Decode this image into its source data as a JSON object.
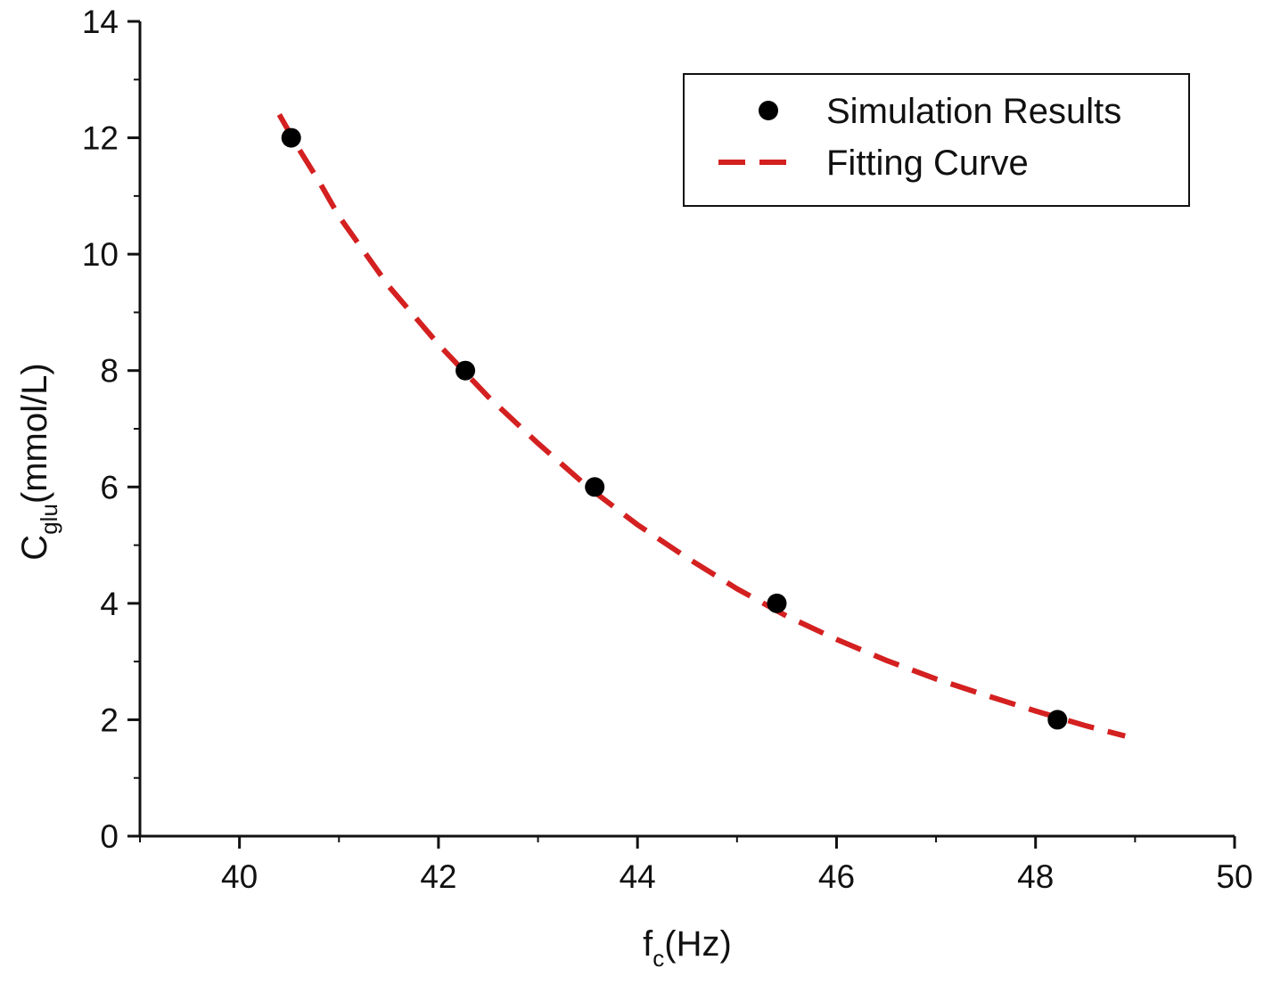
{
  "chart_data": {
    "type": "scatter",
    "xlabel_main": "f",
    "xlabel_sub": "c",
    "xlabel_rest": "(Hz)",
    "ylabel_main": "C",
    "ylabel_sub": "glu",
    "ylabel_rest": "(mmol/L)",
    "xlim": [
      39,
      50
    ],
    "ylim": [
      0,
      14
    ],
    "x_ticks": [
      40,
      42,
      44,
      46,
      48,
      50
    ],
    "y_ticks": [
      0,
      2,
      4,
      6,
      8,
      10,
      12,
      14
    ],
    "x_minor_step": 1,
    "y_minor_step": 1,
    "grid": false,
    "legend_position": "top-right",
    "series": [
      {
        "name": "Simulation Results",
        "kind": "scatter",
        "color": "#000000",
        "x": [
          40.52,
          42.27,
          43.57,
          45.4,
          48.22
        ],
        "y": [
          12.0,
          8.0,
          6.0,
          4.0,
          2.0
        ]
      },
      {
        "name": "Fitting Curve",
        "kind": "line",
        "style": "dashed",
        "color": "#d42020",
        "x": [
          40.4,
          40.6,
          40.8,
          41.0,
          41.5,
          42.0,
          42.5,
          43.0,
          43.5,
          44.0,
          44.5,
          45.0,
          45.5,
          46.0,
          46.5,
          47.0,
          47.5,
          48.0,
          48.5,
          48.9
        ],
        "y": [
          12.4,
          11.8,
          11.25,
          10.65,
          9.45,
          8.45,
          7.55,
          6.75,
          6.0,
          5.35,
          4.78,
          4.25,
          3.78,
          3.38,
          3.02,
          2.7,
          2.42,
          2.15,
          1.9,
          1.72
        ]
      }
    ]
  }
}
